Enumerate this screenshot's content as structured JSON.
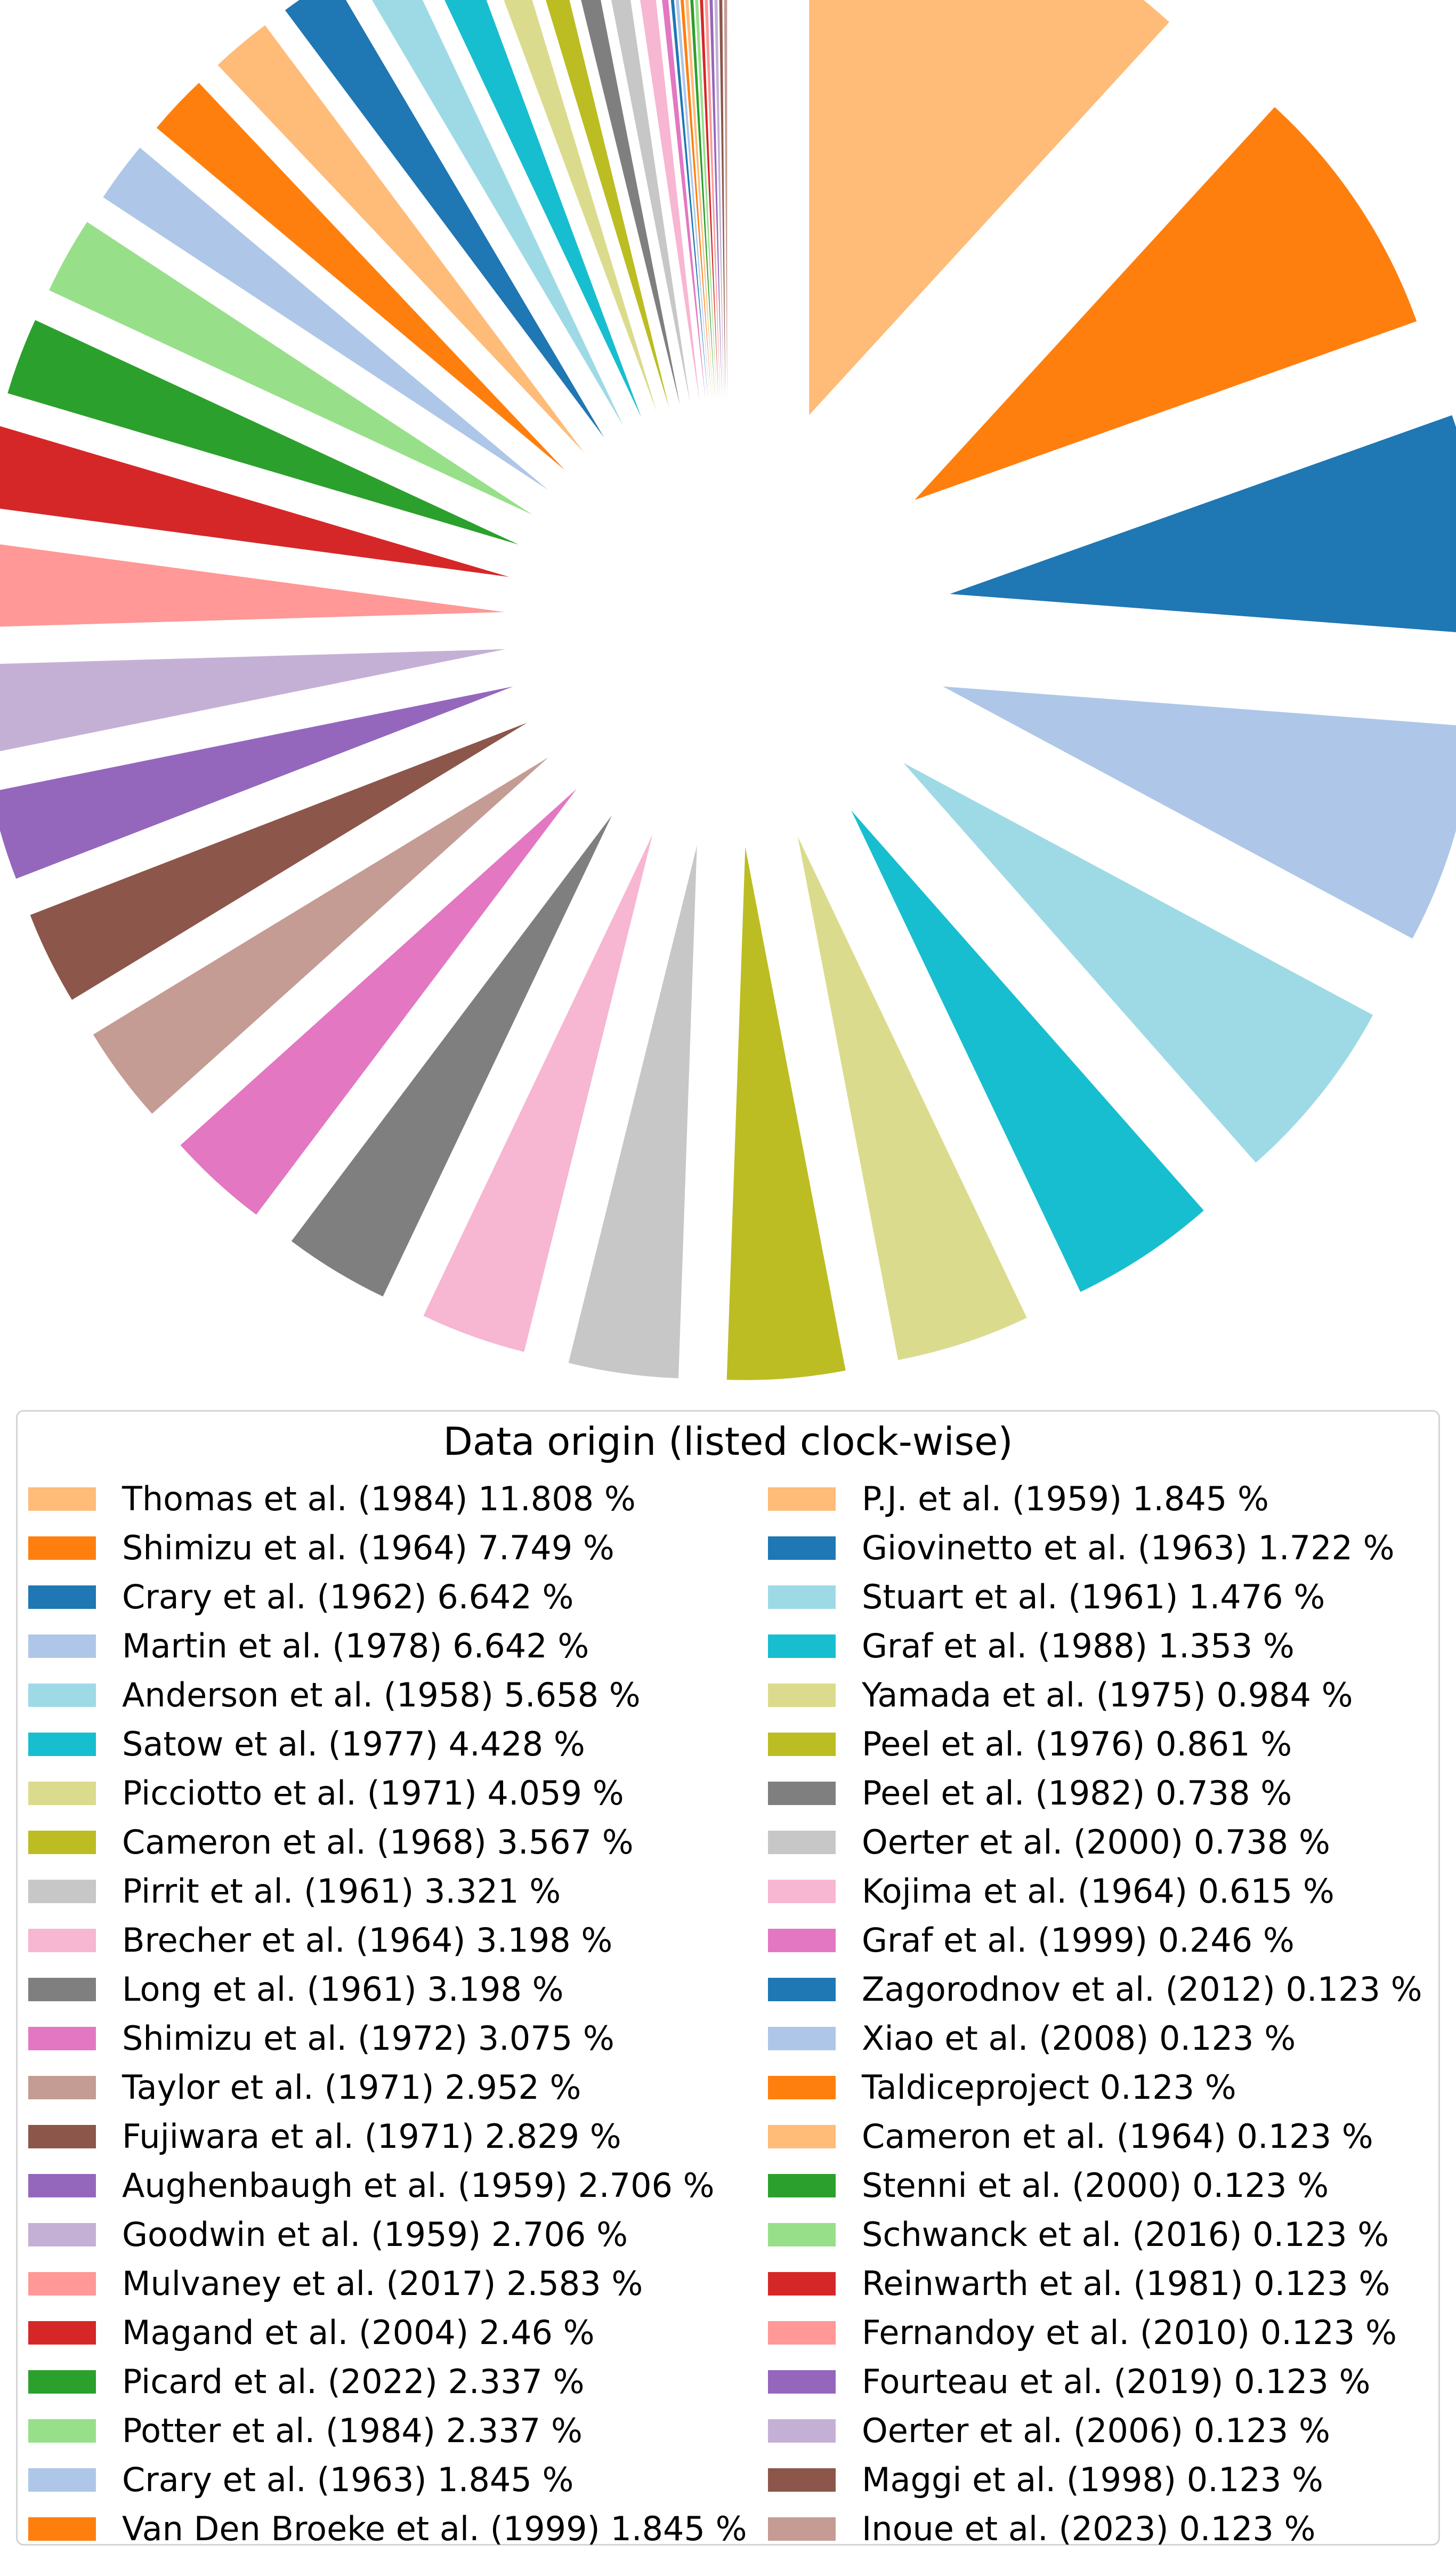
{
  "chart_data": {
    "type": "pie",
    "style": "exploded, clockwise from 12 o'clock",
    "legend_title": "Data origin (listed clock-wise)",
    "legend_placement": "bottom",
    "slices": [
      {
        "label": "Thomas et al. (1984) 11.808 %",
        "value": 11.808,
        "color": "#ffbb78"
      },
      {
        "label": "Shimizu et al. (1964) 7.749 %",
        "value": 7.749,
        "color": "#ff7f0e"
      },
      {
        "label": "Crary et al. (1962) 6.642 %",
        "value": 6.642,
        "color": "#1f77b4"
      },
      {
        "label": "Martin et al. (1978) 6.642 %",
        "value": 6.642,
        "color": "#aec7e8"
      },
      {
        "label": "Anderson et al. (1958) 5.658 %",
        "value": 5.658,
        "color": "#9edae5"
      },
      {
        "label": "Satow et al. (1977) 4.428 %",
        "value": 4.428,
        "color": "#17becf"
      },
      {
        "label": "Picciotto et al. (1971) 4.059 %",
        "value": 4.059,
        "color": "#dbdb8d"
      },
      {
        "label": "Cameron et al. (1968) 3.567 %",
        "value": 3.567,
        "color": "#bcbd22"
      },
      {
        "label": "Pirrit et al. (1961) 3.321 %",
        "value": 3.321,
        "color": "#c7c7c7"
      },
      {
        "label": "Brecher et al. (1964) 3.198 %",
        "value": 3.198,
        "color": "#f7b6d2"
      },
      {
        "label": "Long et al. (1961) 3.198 %",
        "value": 3.198,
        "color": "#7f7f7f"
      },
      {
        "label": "Shimizu et al. (1972) 3.075 %",
        "value": 3.075,
        "color": "#e377c2"
      },
      {
        "label": "Taylor et al. (1971) 2.952 %",
        "value": 2.952,
        "color": "#c49c94"
      },
      {
        "label": "Fujiwara et al. (1971) 2.829 %",
        "value": 2.829,
        "color": "#8c564b"
      },
      {
        "label": "Aughenbaugh et al. (1959) 2.706 %",
        "value": 2.706,
        "color": "#9467bd"
      },
      {
        "label": "Goodwin et al. (1959) 2.706 %",
        "value": 2.706,
        "color": "#c5b0d5"
      },
      {
        "label": "Mulvaney et al. (2017) 2.583 %",
        "value": 2.583,
        "color": "#ff9896"
      },
      {
        "label": "Magand et al. (2004) 2.46 %",
        "value": 2.46,
        "color": "#d62728"
      },
      {
        "label": "Picard et al. (2022) 2.337 %",
        "value": 2.337,
        "color": "#2ca02c"
      },
      {
        "label": "Potter et al. (1984) 2.337 %",
        "value": 2.337,
        "color": "#98df8a"
      },
      {
        "label": "Crary et al. (1963) 1.845 %",
        "value": 1.845,
        "color": "#aec7e8"
      },
      {
        "label": "Van Den Broeke et al. (1999) 1.845 %",
        "value": 1.845,
        "color": "#ff7f0e"
      },
      {
        "label": "P.J. et al. (1959) 1.845 %",
        "value": 1.845,
        "color": "#ffbb78"
      },
      {
        "label": "Giovinetto et al. (1963) 1.722 %",
        "value": 1.722,
        "color": "#1f77b4"
      },
      {
        "label": "Stuart et al. (1961) 1.476 %",
        "value": 1.476,
        "color": "#9edae5"
      },
      {
        "label": "Graf et al. (1988) 1.353 %",
        "value": 1.353,
        "color": "#17becf"
      },
      {
        "label": "Yamada et al. (1975) 0.984 %",
        "value": 0.984,
        "color": "#dbdb8d"
      },
      {
        "label": "Peel et al. (1976) 0.861 %",
        "value": 0.861,
        "color": "#bcbd22"
      },
      {
        "label": "Peel et al. (1982) 0.738 %",
        "value": 0.738,
        "color": "#7f7f7f"
      },
      {
        "label": "Oerter et al. (2000) 0.738 %",
        "value": 0.738,
        "color": "#c7c7c7"
      },
      {
        "label": "Kojima et al. (1964) 0.615 %",
        "value": 0.615,
        "color": "#f7b6d2"
      },
      {
        "label": "Graf et al. (1999) 0.246 %",
        "value": 0.246,
        "color": "#e377c2"
      },
      {
        "label": "Zagorodnov et al. (2012) 0.123 %",
        "value": 0.123,
        "color": "#1f77b4"
      },
      {
        "label": "Xiao et al. (2008) 0.123 %",
        "value": 0.123,
        "color": "#aec7e8"
      },
      {
        "label": "Taldiceproject 0.123 %",
        "value": 0.123,
        "color": "#ff7f0e"
      },
      {
        "label": "Cameron et al. (1964) 0.123 %",
        "value": 0.123,
        "color": "#ffbb78"
      },
      {
        "label": "Stenni et al. (2000) 0.123 %",
        "value": 0.123,
        "color": "#2ca02c"
      },
      {
        "label": "Schwanck et al. (2016) 0.123 %",
        "value": 0.123,
        "color": "#98df8a"
      },
      {
        "label": "Reinwarth et al. (1981) 0.123 %",
        "value": 0.123,
        "color": "#d62728"
      },
      {
        "label": "Fernandoy et al. (2010) 0.123 %",
        "value": 0.123,
        "color": "#ff9896"
      },
      {
        "label": "Fourteau et al. (2019) 0.123 %",
        "value": 0.123,
        "color": "#9467bd"
      },
      {
        "label": "Oerter et al. (2006) 0.123 %",
        "value": 0.123,
        "color": "#c5b0d5"
      },
      {
        "label": "Maggi et al. (1998) 0.123 %",
        "value": 0.123,
        "color": "#8c564b"
      },
      {
        "label": "Inoue et al. (2023) 0.123 %",
        "value": 0.123,
        "color": "#c49c94"
      }
    ]
  }
}
